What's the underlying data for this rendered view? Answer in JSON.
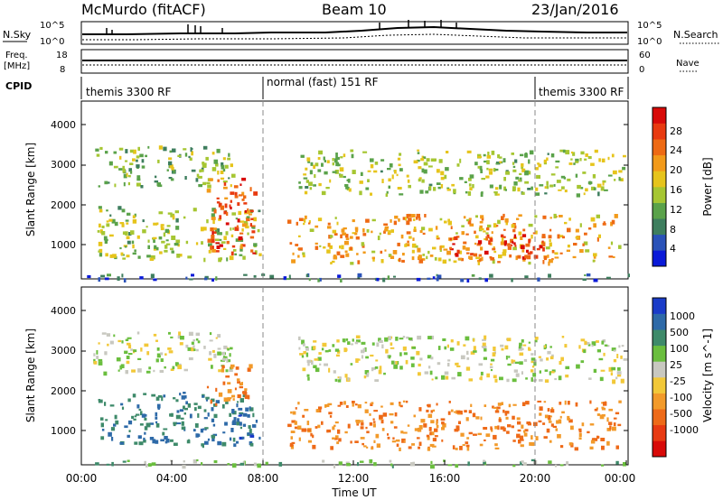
{
  "header": {
    "station": "McMurdo (fitACF)",
    "beam": "Beam 10",
    "date": "23/Jan/2016"
  },
  "top_panels": {
    "nsky_label": "N.Sky",
    "nsearch_label": "N.Search",
    "noise_ticks": [
      "10^5",
      "10^0"
    ],
    "freq_label_line1": "Freq.",
    "freq_label_line2": "[MHz]",
    "freq_ticks": [
      "18",
      "8"
    ],
    "nave_label": "Nave",
    "nave_ticks": [
      "60",
      "0"
    ],
    "cpid_label": "CPID",
    "cpid_segments": [
      "themis 3300 RF",
      "normal (fast) 151 RF",
      "themis 3300 RF"
    ]
  },
  "x_axis": {
    "label": "Time UT",
    "ticks": [
      "00:00",
      "04:00",
      "08:00",
      "12:00",
      "16:00",
      "20:00",
      "00:00"
    ]
  },
  "panels": {
    "power": {
      "ylabel": "Slant Range [km]",
      "yticks": [
        "1000",
        "2000",
        "3000",
        "4000"
      ],
      "cbar_label": "Power [dB]",
      "cbar_ticks": [
        "4",
        "8",
        "12",
        "16",
        "20",
        "24",
        "28"
      ],
      "cbar_colors": [
        "#0a1ad8",
        "#2a52b8",
        "#3e7e5e",
        "#5aa24a",
        "#a6c632",
        "#e6c41c",
        "#f29a1a",
        "#ee6a14",
        "#e83a10",
        "#d80a08"
      ]
    },
    "velocity": {
      "ylabel": "Slant Range [km]",
      "yticks": [
        "1000",
        "2000",
        "3000",
        "4000"
      ],
      "cbar_label": "Velocity [m s^-1]",
      "cbar_ticks": [
        "1000",
        "500",
        "100",
        "25",
        "-25",
        "-100",
        "-500",
        "-1000"
      ],
      "cbar_colors": [
        "#1a3cc8",
        "#2e6aa8",
        "#3e8a6a",
        "#6abe3e",
        "#c8c8c0",
        "#f2c838",
        "#f29a2a",
        "#ee6a18",
        "#e83a12",
        "#d80a08"
      ]
    }
  },
  "chart_data": [
    {
      "type": "heatmap",
      "title": "Power",
      "xlabel": "Time UT",
      "ylabel": "Slant Range [km]",
      "xlim": [
        "00:00",
        "24:00"
      ],
      "ylim": [
        180,
        4600
      ],
      "colorbar": "Power [dB]",
      "zlim": [
        0,
        32
      ],
      "echo_regions": [
        {
          "t_start": 0.7,
          "t_end": 7.8,
          "range_min": 700,
          "range_max": 2000,
          "power_db": 14
        },
        {
          "t_start": 0.5,
          "t_end": 6.6,
          "range_min": 2500,
          "range_max": 3500,
          "power_db": 12
        },
        {
          "t_start": 5.5,
          "t_end": 7.6,
          "range_min": 800,
          "range_max": 2700,
          "power_db": 26
        },
        {
          "t_start": 9.0,
          "t_end": 23.6,
          "range_min": 600,
          "range_max": 1800,
          "power_db": 20
        },
        {
          "t_start": 16.0,
          "t_end": 20.5,
          "range_min": 700,
          "range_max": 1300,
          "power_db": 28
        },
        {
          "t_start": 9.5,
          "t_end": 23.8,
          "range_min": 2300,
          "range_max": 3400,
          "power_db": 14
        },
        {
          "t_start": 0.0,
          "t_end": 24.0,
          "range_min": 180,
          "range_max": 320,
          "power_db": 6
        }
      ]
    },
    {
      "type": "heatmap",
      "title": "Velocity",
      "xlabel": "Time UT",
      "ylabel": "Slant Range [km]",
      "xlim": [
        "00:00",
        "24:00"
      ],
      "ylim": [
        180,
        4600
      ],
      "colorbar": "Velocity [m s^-1]",
      "zlim": [
        -1000,
        1000
      ],
      "echo_regions": [
        {
          "t_start": 0.7,
          "t_end": 7.8,
          "range_min": 700,
          "range_max": 2000,
          "velocity": 300
        },
        {
          "t_start": 0.5,
          "t_end": 6.6,
          "range_min": 2500,
          "range_max": 3500,
          "velocity": 20
        },
        {
          "t_start": 5.5,
          "t_end": 7.4,
          "range_min": 1700,
          "range_max": 2700,
          "velocity": -300
        },
        {
          "t_start": 6.8,
          "t_end": 7.4,
          "range_min": 800,
          "range_max": 1700,
          "velocity": 700
        },
        {
          "t_start": 9.0,
          "t_end": 23.6,
          "range_min": 600,
          "range_max": 1800,
          "velocity": -300
        },
        {
          "t_start": 9.5,
          "t_end": 23.8,
          "range_min": 2300,
          "range_max": 3400,
          "velocity": 0
        },
        {
          "t_start": 0.0,
          "t_end": 24.0,
          "range_min": 180,
          "range_max": 320,
          "velocity": 60
        }
      ]
    }
  ]
}
